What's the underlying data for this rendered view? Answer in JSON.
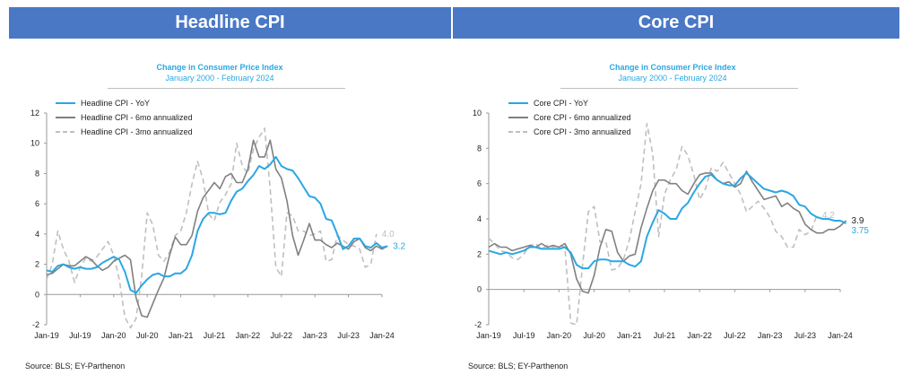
{
  "panels": [
    {
      "banner": "Headline CPI",
      "source": "Source: BLS; EY-Parthenon",
      "chart_data": {
        "type": "line",
        "title": "Change in Consumer Price Index",
        "subtitle": "January 2000 - February 2024",
        "xlabel": "",
        "ylabel": "",
        "x_ticks": [
          "Jan-19",
          "Jul-19",
          "Jan-20",
          "Jul-20",
          "Jan-21",
          "Jul-21",
          "Jan-22",
          "Jul-22",
          "Jan-23",
          "Jul-23",
          "Jan-24"
        ],
        "ylim": [
          -2,
          12
        ],
        "y_ticks": [
          -2,
          0,
          2,
          4,
          6,
          8,
          10,
          12
        ],
        "grid": false,
        "legend": "top-left",
        "end_labels": [
          {
            "text": "4.0",
            "series": 2,
            "value": 4.0
          },
          {
            "text": "3.2",
            "series": 0,
            "value": 3.2
          }
        ],
        "series": [
          {
            "name": "Headline CPI - YoY",
            "color": "#2aa7e3",
            "style": "solid",
            "start_month": 0,
            "values": [
              1.6,
              1.5,
              1.9,
              2.0,
              1.8,
              1.7,
              1.8,
              1.7,
              1.7,
              1.8,
              2.1,
              2.3,
              2.5,
              2.3,
              1.5,
              0.3,
              0.1,
              0.6,
              1.0,
              1.3,
              1.4,
              1.2,
              1.2,
              1.4,
              1.4,
              1.7,
              2.6,
              4.2,
              5.0,
              5.4,
              5.4,
              5.3,
              5.4,
              6.2,
              6.8,
              7.0,
              7.5,
              7.9,
              8.5,
              8.3,
              8.6,
              9.1,
              8.5,
              8.3,
              8.2,
              7.7,
              7.1,
              6.5,
              6.4,
              6.0,
              5.0,
              4.9,
              4.0,
              3.0,
              3.2,
              3.7,
              3.7,
              3.2,
              3.1,
              3.4,
              3.1,
              3.2
            ]
          },
          {
            "name": "Headline CPI - 6mo annualized",
            "color": "#808080",
            "style": "solid",
            "start_month": 0,
            "values": [
              1.3,
              1.4,
              1.7,
              2.0,
              1.9,
              1.9,
              2.2,
              2.5,
              2.3,
              1.9,
              1.6,
              1.8,
              2.2,
              2.4,
              2.6,
              2.3,
              -0.2,
              -1.4,
              -1.5,
              -0.6,
              0.3,
              1.1,
              2.6,
              3.8,
              3.3,
              3.3,
              3.9,
              5.5,
              6.4,
              6.9,
              7.4,
              7.0,
              7.8,
              8.0,
              7.4,
              7.4,
              8.3,
              10.2,
              9.1,
              9.1,
              10.2,
              8.3,
              7.7,
              6.2,
              3.9,
              2.6,
              3.6,
              4.7,
              3.6,
              3.6,
              3.3,
              3.1,
              3.4,
              3.2,
              3.0,
              3.5,
              3.7,
              3.1,
              2.9,
              3.2,
              3.0,
              3.2
            ]
          },
          {
            "name": "Headline CPI - 3mo annualized",
            "color": "#bfbfbf",
            "style": "dashed",
            "start_month": 0,
            "values": [
              1.0,
              2.0,
              4.2,
              3.0,
              2.2,
              0.8,
              1.8,
              2.4,
              2.2,
              2.5,
              3.0,
              3.5,
              2.6,
              1.0,
              -1.5,
              -2.2,
              -1.6,
              1.2,
              5.4,
              4.6,
              2.6,
              2.2,
              2.8,
              3.9,
              4.2,
              5.4,
              7.3,
              8.8,
              7.6,
              5.3,
              4.9,
              6.1,
              6.6,
              7.3,
              10.0,
              8.5,
              8.0,
              9.6,
              10.4,
              11.0,
              7.0,
              1.8,
              1.2,
              5.4,
              5.2,
              4.2,
              4.2,
              3.9,
              4.0,
              4.2,
              2.2,
              2.3,
              3.9,
              3.6,
              3.3,
              3.2,
              3.0,
              1.8,
              2.0,
              4.0
            ]
          }
        ]
      }
    },
    {
      "banner": "Core CPI",
      "source": "Source: BLS; EY-Parthenon",
      "chart_data": {
        "type": "line",
        "title": "Change in Consumer Price Index",
        "subtitle": "January 2000 - February 2024",
        "xlabel": "",
        "ylabel": "",
        "x_ticks": [
          "Jan-19",
          "Jul-19",
          "Jan-20",
          "Jul-20",
          "Jan-21",
          "Jul-21",
          "Jan-22",
          "Jul-22",
          "Jan-23",
          "Jul-23",
          "Jan-24"
        ],
        "ylim": [
          -2,
          10
        ],
        "y_ticks": [
          -2,
          0,
          2,
          4,
          6,
          8,
          10
        ],
        "grid": false,
        "legend": "top-left",
        "end_labels": [
          {
            "text": "4.2",
            "series": 2,
            "value": 4.2
          },
          {
            "text": "3.9",
            "series": 1,
            "value": 3.9
          },
          {
            "text": "3.75",
            "series": 0,
            "value": 3.75
          }
        ],
        "series": [
          {
            "name": "Core CPI - YoY",
            "color": "#2aa7e3",
            "style": "solid",
            "start_month": 0,
            "values": [
              2.2,
              2.1,
              2.0,
              2.1,
              2.0,
              2.1,
              2.2,
              2.4,
              2.4,
              2.3,
              2.3,
              2.3,
              2.3,
              2.4,
              2.1,
              1.4,
              1.2,
              1.2,
              1.6,
              1.7,
              1.7,
              1.6,
              1.6,
              1.6,
              1.4,
              1.3,
              1.6,
              3.0,
              3.8,
              4.5,
              4.3,
              4.0,
              4.0,
              4.6,
              4.9,
              5.5,
              6.0,
              6.4,
              6.5,
              6.2,
              6.0,
              5.9,
              5.9,
              6.3,
              6.6,
              6.3,
              6.0,
              5.7,
              5.6,
              5.5,
              5.6,
              5.5,
              5.3,
              4.8,
              4.7,
              4.3,
              4.1,
              4.0,
              4.0,
              3.9,
              3.9,
              3.75
            ]
          },
          {
            "name": "Core CPI - 6mo annualized",
            "color": "#808080",
            "style": "solid",
            "start_month": 0,
            "values": [
              2.4,
              2.6,
              2.4,
              2.4,
              2.2,
              2.3,
              2.4,
              2.5,
              2.4,
              2.6,
              2.4,
              2.5,
              2.4,
              2.6,
              2.0,
              0.6,
              -0.1,
              -0.2,
              0.8,
              2.4,
              3.4,
              3.3,
              2.1,
              1.6,
              1.9,
              2.0,
              3.5,
              4.6,
              5.6,
              6.2,
              6.2,
              6.0,
              6.0,
              5.6,
              5.4,
              6.0,
              6.5,
              6.6,
              6.6,
              6.2,
              6.0,
              6.1,
              5.8,
              6.0,
              6.7,
              6.1,
              5.6,
              5.1,
              5.2,
              5.3,
              4.7,
              4.9,
              4.6,
              4.4,
              3.7,
              3.4,
              3.2,
              3.2,
              3.4,
              3.4,
              3.6,
              3.9
            ]
          },
          {
            "name": "Core CPI - 3mo annualized",
            "color": "#bfbfbf",
            "style": "dashed",
            "start_month": 0,
            "values": [
              2.9,
              2.6,
              2.2,
              2.1,
              1.8,
              1.7,
              2.0,
              2.5,
              2.6,
              2.3,
              2.5,
              2.4,
              2.5,
              2.4,
              -1.9,
              -2.0,
              1.3,
              4.4,
              4.7,
              2.7,
              2.7,
              1.1,
              1.2,
              1.7,
              2.8,
              4.4,
              6.0,
              9.4,
              7.7,
              3.0,
              5.4,
              6.2,
              6.8,
              8.1,
              7.6,
              6.5,
              5.1,
              5.7,
              6.9,
              6.7,
              7.2,
              6.6,
              6.0,
              5.4,
              4.4,
              4.7,
              5.0,
              4.6,
              4.1,
              3.3,
              3.0,
              2.4,
              2.4,
              3.4,
              3.1,
              3.3,
              4.2
            ]
          }
        ]
      }
    }
  ]
}
